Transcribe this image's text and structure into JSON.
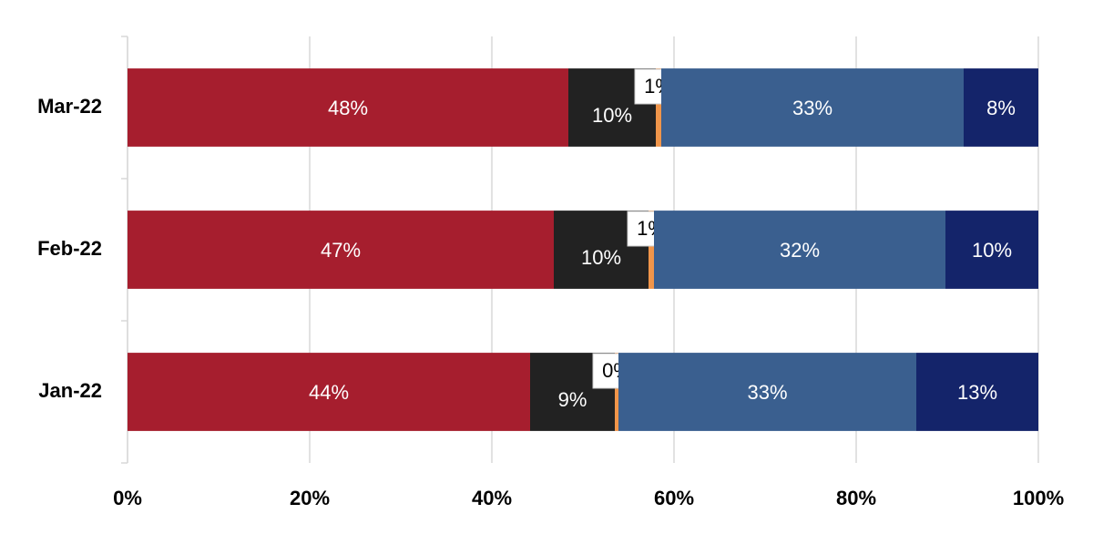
{
  "chart_data": {
    "type": "stacked-bar-horizontal",
    "categories": [
      "Jan-22",
      "Feb-22",
      "Mar-22"
    ],
    "series": [
      {
        "color": "#a61e2e",
        "values": [
          44.2,
          46.8,
          48.4
        ],
        "value_labels": [
          "44%",
          "47%",
          "48%"
        ]
      },
      {
        "color": "#222222",
        "values": [
          9.3,
          10.4,
          9.6
        ],
        "value_labels": [
          "9%",
          "10%",
          "10%"
        ]
      },
      {
        "color": "#f0954a",
        "values": [
          0.4,
          0.6,
          0.6
        ],
        "value_labels": [
          "0%",
          "1%",
          "1%"
        ]
      },
      {
        "color": "#3a5f8f",
        "values": [
          32.7,
          32.0,
          33.2
        ],
        "value_labels": [
          "33%",
          "32%",
          "33%"
        ]
      },
      {
        "color": "#14246a",
        "values": [
          13.4,
          10.2,
          8.2
        ],
        "value_labels": [
          "13%",
          "10%",
          "8%"
        ]
      }
    ],
    "xlim": [
      0,
      100
    ],
    "xticks": [
      {
        "value": 0,
        "label": "0%"
      },
      {
        "value": 20,
        "label": "20%"
      },
      {
        "value": 40,
        "label": "40%"
      },
      {
        "value": 60,
        "label": "60%"
      },
      {
        "value": 80,
        "label": "80%"
      },
      {
        "value": 100,
        "label": "100%"
      }
    ],
    "grid": true
  }
}
